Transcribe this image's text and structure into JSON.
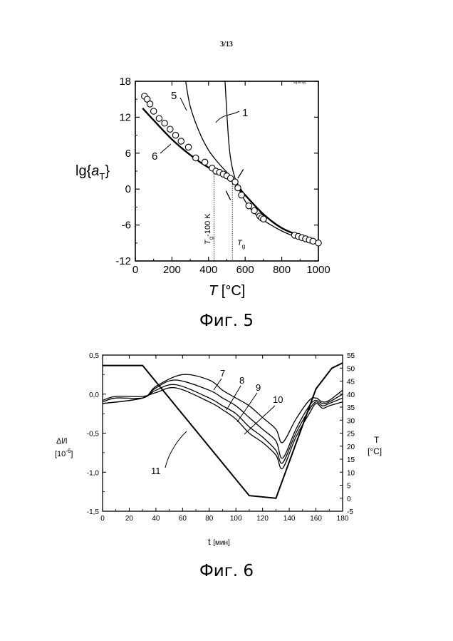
{
  "page": {
    "number": "3/13"
  },
  "fig5": {
    "caption": "Фиг. 5",
    "corner_mark": "clg1fb.opj",
    "chart_data": {
      "type": "line",
      "xlabel": "T [°C]",
      "ylabel": "lg{aT}",
      "xlim": [
        0,
        1000
      ],
      "ylim": [
        -12,
        18
      ],
      "xticks": [
        0,
        200,
        400,
        600,
        800,
        1000
      ],
      "yticks": [
        -12,
        -6,
        0,
        6,
        12,
        18
      ],
      "annotations": {
        "tg_minus": "Tg-100 K",
        "tg": "Tg",
        "tg_minus_x": 430,
        "tg_x": 530
      },
      "series": [
        {
          "name": "1",
          "x": [
            490,
            510,
            530,
            560,
            600,
            650,
            700,
            800,
            900,
            1000
          ],
          "y": [
            18,
            8,
            3.5,
            0.5,
            -2,
            -4,
            -5.2,
            -7,
            -8.2,
            -9
          ]
        },
        {
          "name": "5",
          "x": [
            275,
            300,
            350,
            400,
            450,
            500,
            530,
            560,
            600,
            700,
            800,
            900,
            1000
          ],
          "y": [
            18,
            13.8,
            9.5,
            6.5,
            4.5,
            2.8,
            1.8,
            0.8,
            -1,
            -4.2,
            -6.5,
            -7.8,
            -8.8
          ]
        },
        {
          "name": "6",
          "x": [
            40,
            100,
            200,
            300,
            400,
            500,
            530,
            560,
            600,
            700,
            800,
            900,
            1000
          ],
          "y": [
            13.5,
            11.5,
            8.3,
            5.7,
            3.6,
            2,
            1.6,
            0.3,
            -1,
            -4.2,
            -6.5,
            -7.8,
            -8.8
          ]
        },
        {
          "name": "circles",
          "x": [
            50,
            65,
            80,
            100,
            130,
            160,
            190,
            220,
            250,
            290,
            330,
            380,
            420,
            440,
            460,
            480,
            500,
            520,
            545,
            560,
            580,
            620,
            650,
            680,
            690,
            700,
            870,
            890,
            910,
            930,
            950,
            970,
            1000
          ],
          "y": [
            15.5,
            15,
            14.2,
            13,
            11.8,
            11,
            10,
            9,
            8,
            7,
            5.2,
            4.5,
            3.5,
            3,
            2.8,
            2.5,
            2.2,
            1.8,
            1.2,
            0.2,
            -1,
            -2.8,
            -3.6,
            -4.5,
            -4.8,
            -5,
            -7.7,
            -7.9,
            -8.1,
            -8.3,
            -8.5,
            -8.7,
            -9
          ]
        }
      ]
    }
  },
  "fig6": {
    "caption": "Фиг. 6",
    "chart_data": {
      "type": "line",
      "xlabel": "t [мин]",
      "ylabel_left": "Δl/l [10^-6]",
      "ylabel_left_line1": "Δl/l",
      "ylabel_left_line2": "[10",
      "ylabel_left_exp": "-6",
      "ylabel_left_close": "]",
      "ylabel_right": "T [°C]",
      "ylabel_right_line1": "T",
      "ylabel_right_line2": "[°C]",
      "xlim": [
        0,
        180
      ],
      "ylim_left": [
        -1.5,
        0.5
      ],
      "ylim_right": [
        -5,
        55
      ],
      "xticks": [
        0,
        20,
        40,
        60,
        80,
        100,
        120,
        140,
        160,
        180
      ],
      "yticks_left": [
        "0,5",
        "0,0",
        "-0,5",
        "-1,0",
        "-1,5"
      ],
      "yticks_left_values": [
        0.5,
        0,
        -0.5,
        -1,
        -1.5
      ],
      "yticks_right": [
        -5,
        0,
        5,
        10,
        15,
        20,
        25,
        30,
        35,
        40,
        45,
        50,
        55
      ],
      "series": [
        {
          "name": "7",
          "axis": "left",
          "x": [
            0,
            30,
            40,
            60,
            80,
            90,
            100,
            110,
            120,
            130,
            135,
            145,
            155,
            160,
            165,
            170,
            180
          ],
          "y": [
            -0.12,
            -0.05,
            0.1,
            0.25,
            0.18,
            0.05,
            -0.05,
            -0.15,
            -0.3,
            -0.45,
            -0.62,
            -0.32,
            -0.08,
            -0.05,
            -0.1,
            -0.08,
            0.05
          ]
        },
        {
          "name": "8",
          "axis": "left",
          "x": [
            0,
            30,
            40,
            55,
            80,
            90,
            100,
            110,
            120,
            130,
            135,
            145,
            155,
            160,
            165,
            170,
            180
          ],
          "y": [
            -0.12,
            -0.05,
            0.08,
            0.18,
            0.05,
            -0.05,
            -0.15,
            -0.3,
            -0.45,
            -0.6,
            -0.82,
            -0.45,
            -0.15,
            -0.08,
            -0.12,
            -0.1,
            0.0
          ]
        },
        {
          "name": "9",
          "axis": "left",
          "x": [
            0,
            10,
            30,
            40,
            55,
            80,
            90,
            100,
            110,
            120,
            130,
            135,
            145,
            155,
            160,
            165,
            170,
            180
          ],
          "y": [
            -0.1,
            -0.05,
            -0.05,
            0.05,
            0.12,
            -0.05,
            -0.15,
            -0.25,
            -0.42,
            -0.55,
            -0.72,
            -0.88,
            -0.5,
            -0.2,
            -0.1,
            -0.15,
            -0.12,
            -0.05
          ]
        },
        {
          "name": "10",
          "axis": "left",
          "x": [
            0,
            10,
            30,
            40,
            55,
            80,
            90,
            100,
            110,
            120,
            130,
            135,
            145,
            155,
            160,
            165,
            170,
            180
          ],
          "y": [
            -0.08,
            -0.03,
            -0.03,
            0.02,
            0.08,
            -0.1,
            -0.2,
            -0.32,
            -0.5,
            -0.62,
            -0.78,
            -0.95,
            -0.55,
            -0.25,
            -0.12,
            -0.18,
            -0.15,
            -0.1
          ]
        },
        {
          "name": "11",
          "axis": "right",
          "x": [
            0,
            30,
            110,
            130,
            160,
            172,
            180
          ],
          "y": [
            51,
            51,
            1,
            0,
            42,
            50,
            52
          ]
        }
      ]
    }
  }
}
